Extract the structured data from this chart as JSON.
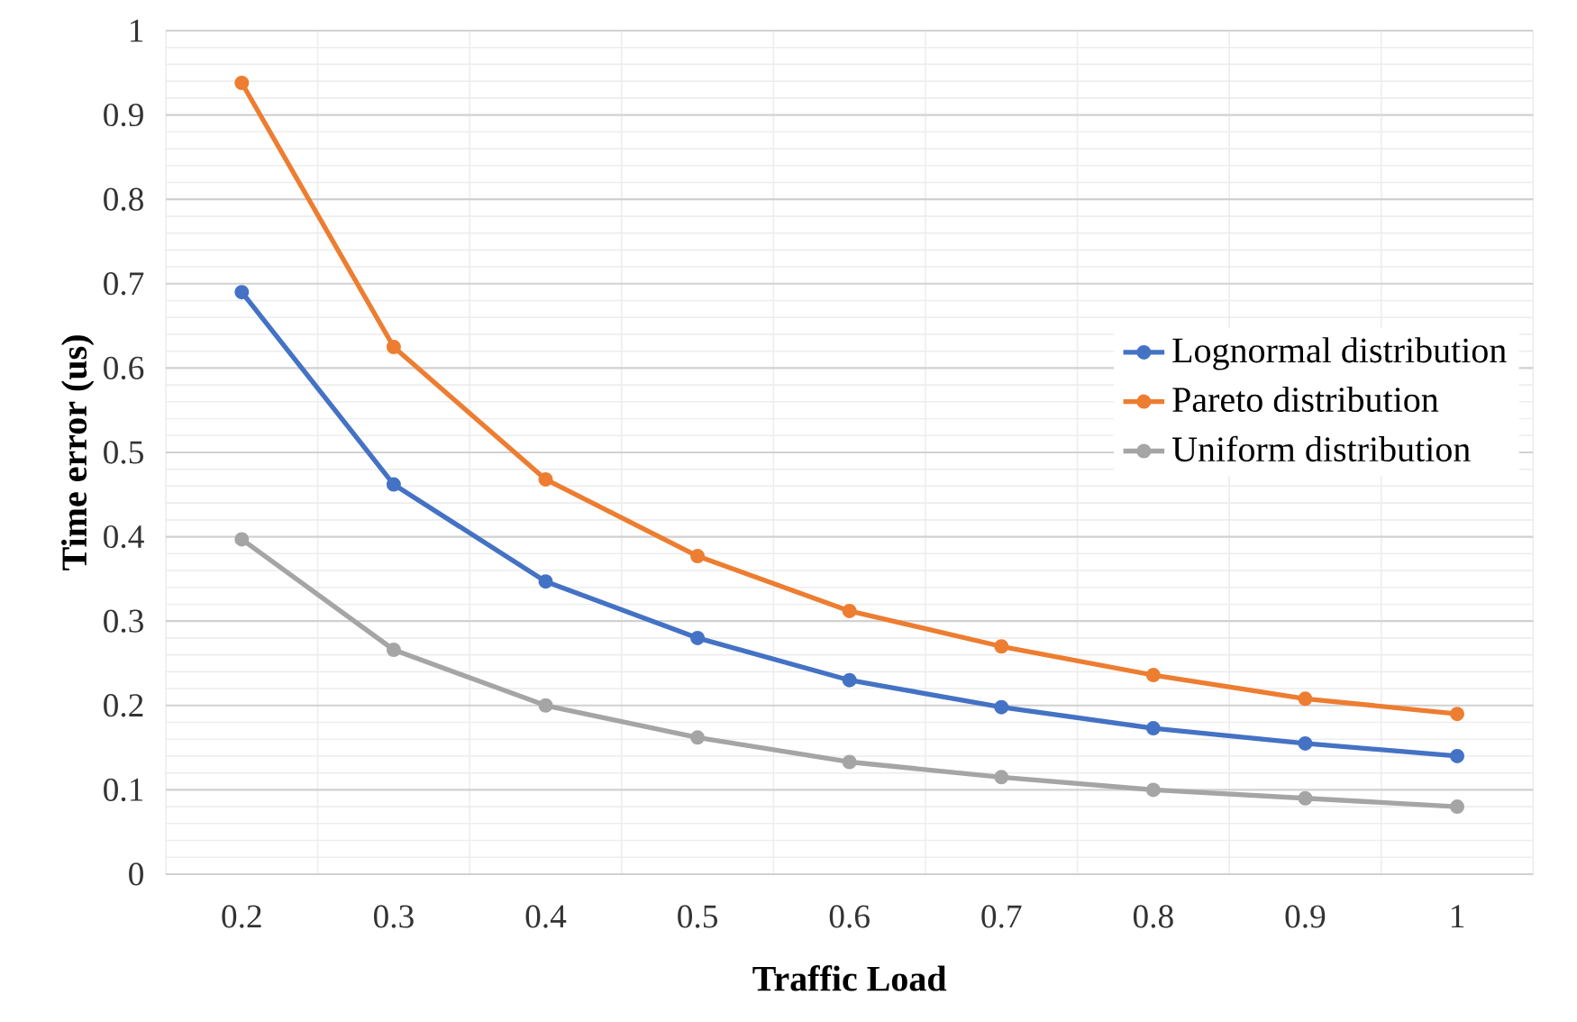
{
  "chart_data": {
    "type": "line",
    "xlabel": "Traffic Load",
    "ylabel": "Time error (us)",
    "categories": [
      "0.2",
      "0.3",
      "0.4",
      "0.5",
      "0.6",
      "0.7",
      "0.8",
      "0.9",
      "1"
    ],
    "series": [
      {
        "name": "Lognormal distribution",
        "color": "#4472c4",
        "values": [
          0.69,
          0.462,
          0.347,
          0.28,
          0.23,
          0.198,
          0.173,
          0.155,
          0.14
        ]
      },
      {
        "name": "Pareto distribution",
        "color": "#ed7d31",
        "values": [
          0.938,
          0.625,
          0.468,
          0.377,
          0.312,
          0.27,
          0.236,
          0.208,
          0.19
        ]
      },
      {
        "name": "Uniform distribution",
        "color": "#a5a5a5",
        "values": [
          0.397,
          0.266,
          0.2,
          0.162,
          0.133,
          0.115,
          0.1,
          0.09,
          0.08
        ]
      }
    ],
    "ylim": [
      0,
      1
    ],
    "yticks": [
      0,
      0.1,
      0.2,
      0.3,
      0.4,
      0.5,
      0.6,
      0.7,
      0.8,
      0.9,
      1
    ],
    "grid": true,
    "legend": "right",
    "marker": "circle",
    "line_style": "solid"
  }
}
